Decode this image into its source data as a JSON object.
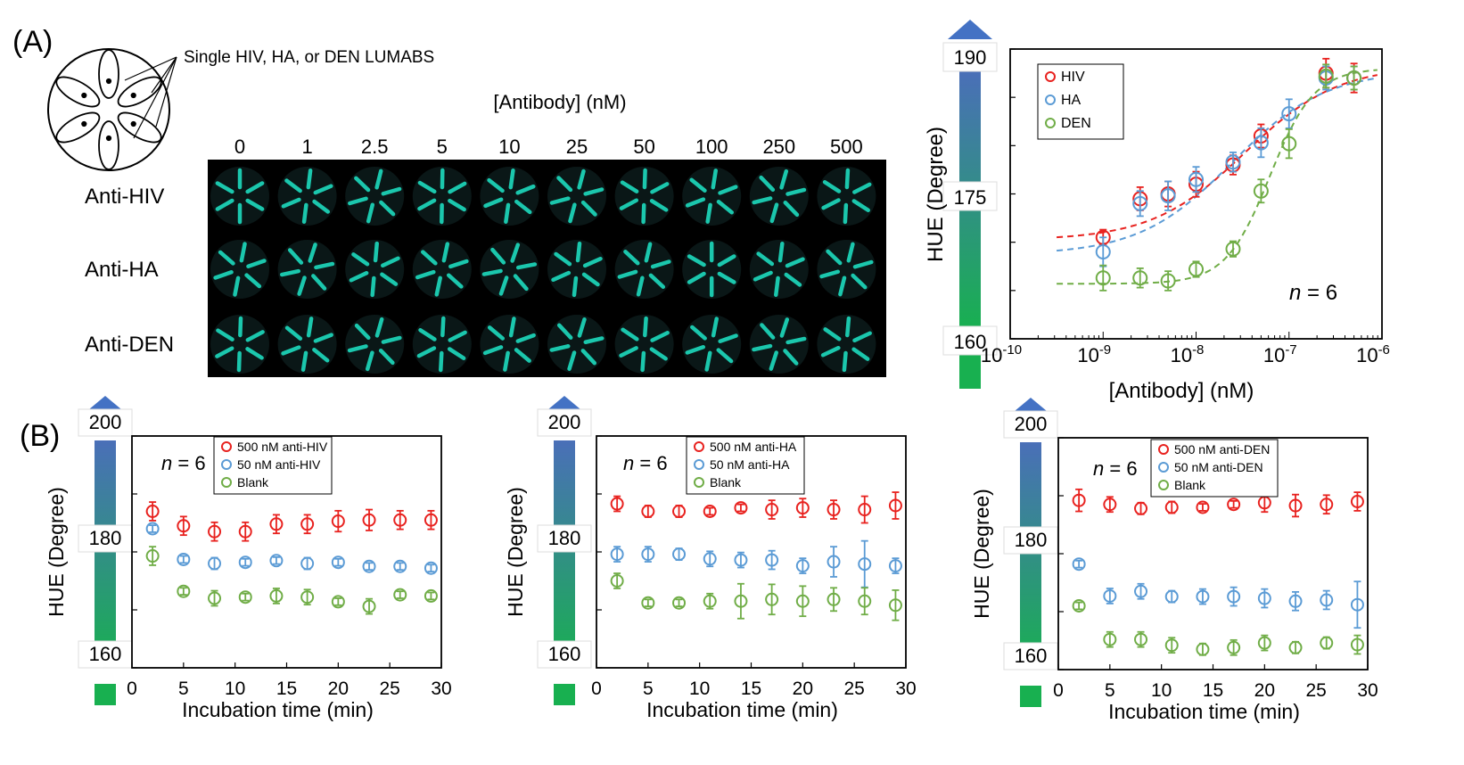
{
  "panel_labels": {
    "a": "(A)",
    "b": "(B)"
  },
  "schematic": {
    "label": "Single HIV, HA, or DEN LUMABS"
  },
  "grid": {
    "title": "[Antibody] (nM)",
    "columns": [
      "0",
      "1",
      "2.5",
      "5",
      "10",
      "25",
      "50",
      "100",
      "250",
      "500"
    ],
    "rows": [
      "Anti-HIV",
      "Anti-HA",
      "Anti-DEN"
    ]
  },
  "colors": {
    "hiv": "#e8221f",
    "ha": "#5b9bd5",
    "den": "#70ad47",
    "arrow": "#4472c4",
    "bar_top": "#4a6fb8",
    "bar_bottom": "#18b050",
    "spot": "#1ee6c8"
  },
  "scale_bar_a": {
    "arrow": "up-arrow",
    "labels": [
      "190",
      "175",
      "160"
    ]
  },
  "scale_bars_b": {
    "arrow": "up-arrow",
    "labels": [
      "200",
      "180",
      "160"
    ]
  },
  "chart_data": [
    {
      "id": "A-dose",
      "type": "scatter",
      "xscale": "log",
      "xlabel": "[Antibody] (nM)",
      "ylabel": "HUE (Degree)",
      "xlim": [
        1e-10,
        1e-06
      ],
      "ylim": [
        160,
        190
      ],
      "yticks": [
        160,
        175,
        190
      ],
      "xtick_labels": [
        "10-10",
        "10-9",
        "10-8",
        "10-7",
        "10-6"
      ],
      "annotation": "n = 6",
      "legend": "top-left",
      "fit": "dashed sigmoid",
      "series": [
        {
          "name": "HIV",
          "color_key": "hiv",
          "x": [
            1e-09,
            2.5e-09,
            5e-09,
            1e-08,
            2.5e-08,
            5e-08,
            2.5e-07,
            5e-07
          ],
          "y": [
            170.5,
            174.5,
            175,
            176,
            178,
            181,
            187.5,
            187
          ],
          "err": [
            0.8,
            1.2,
            1.3,
            1.3,
            1,
            1.2,
            1.5,
            1.5
          ]
        },
        {
          "name": "HA",
          "color_key": "ha",
          "x": [
            1e-09,
            2.5e-09,
            5e-09,
            1e-08,
            2.5e-08,
            5e-08,
            1e-07,
            2.5e-07,
            5e-07
          ],
          "y": [
            169,
            174,
            174.8,
            176.5,
            178.3,
            180.3,
            183.3,
            187,
            187
          ],
          "err": [
            1.5,
            1.3,
            1.5,
            1.3,
            1,
            1.5,
            1.5,
            1.2,
            1.2
          ]
        },
        {
          "name": "DEN",
          "color_key": "den",
          "x": [
            1e-09,
            2.5e-09,
            5e-09,
            1e-08,
            2.5e-08,
            5e-08,
            1e-07,
            2.5e-07,
            5e-07
          ],
          "y": [
            166.3,
            166.3,
            166,
            167.2,
            169.3,
            175.3,
            180.2,
            187.2,
            187
          ],
          "err": [
            1.3,
            1,
            1,
            0.8,
            0.8,
            1.2,
            1.5,
            1.2,
            1.2
          ]
        }
      ]
    },
    {
      "id": "B-HIV",
      "type": "scatter",
      "xlabel": "Incubation time (min)",
      "ylabel": "HUE (Degree)",
      "xlim": [
        0,
        30
      ],
      "ylim": [
        160,
        200
      ],
      "xticks": [
        0,
        5,
        10,
        15,
        20,
        25,
        30
      ],
      "yticks": [
        160,
        180,
        200
      ],
      "annotation": "n = 6",
      "legend": "top",
      "series": [
        {
          "name": "500 nM anti-HIV",
          "color_key": "hiv",
          "x": [
            2,
            5,
            8,
            11,
            14,
            17,
            20,
            23,
            26,
            29
          ],
          "y": [
            187,
            184.5,
            183.5,
            183.5,
            184.8,
            184.8,
            185.3,
            185.5,
            185.5,
            185.5
          ],
          "err": [
            1.6,
            1.6,
            1.6,
            1.6,
            1.6,
            1.6,
            1.8,
            1.8,
            1.6,
            1.6
          ]
        },
        {
          "name": "50 nM anti-HIV",
          "color_key": "ha",
          "x": [
            2,
            5,
            8,
            11,
            14,
            17,
            20,
            23,
            26,
            29
          ],
          "y": [
            184,
            178.7,
            178,
            178.2,
            178.5,
            178,
            178.2,
            177.5,
            177.5,
            177.2
          ],
          "err": [
            0.6,
            0.6,
            1,
            0.6,
            0.6,
            1,
            0.6,
            0.6,
            0.6,
            0.6
          ]
        },
        {
          "name": "Blank",
          "color_key": "den",
          "x": [
            2,
            5,
            8,
            11,
            14,
            17,
            20,
            23,
            26,
            29
          ],
          "y": [
            179.3,
            173.2,
            172,
            172.2,
            172.4,
            172.2,
            171.4,
            170.6,
            172.6,
            172.4
          ],
          "err": [
            1.6,
            0.6,
            1.3,
            0.6,
            1.3,
            1.3,
            0.6,
            1.3,
            0.6,
            0.6
          ]
        }
      ]
    },
    {
      "id": "B-HA",
      "type": "scatter",
      "xlabel": "Incubation time (min)",
      "ylabel": "HUE (Degree)",
      "xlim": [
        0,
        30
      ],
      "ylim": [
        160,
        200
      ],
      "xticks": [
        0,
        5,
        10,
        15,
        20,
        25,
        30
      ],
      "yticks": [
        160,
        180,
        200
      ],
      "annotation": "n = 6",
      "legend": "top",
      "series": [
        {
          "name": "500 nM anti-HA",
          "color_key": "hiv",
          "x": [
            2,
            5,
            8,
            11,
            14,
            17,
            20,
            23,
            26,
            29
          ],
          "y": [
            188.3,
            187,
            187,
            187,
            187.6,
            187.3,
            187.6,
            187.3,
            187.3,
            188
          ],
          "err": [
            1.3,
            1,
            1,
            0.6,
            0.6,
            1.6,
            1.6,
            1.6,
            2.3,
            2.3
          ]
        },
        {
          "name": "50 nM anti-HA",
          "color_key": "ha",
          "x": [
            2,
            5,
            8,
            11,
            14,
            17,
            20,
            23,
            26,
            29
          ],
          "y": [
            179.6,
            179.6,
            179.6,
            178.8,
            178.6,
            178.6,
            177.6,
            178.3,
            177.9,
            177.6
          ],
          "err": [
            1.3,
            1.3,
            1,
            1.3,
            1.3,
            1.6,
            1.3,
            2.6,
            4,
            1.3
          ]
        },
        {
          "name": "Blank",
          "color_key": "den",
          "x": [
            2,
            5,
            8,
            11,
            14,
            17,
            20,
            23,
            26,
            29
          ],
          "y": [
            175,
            171.2,
            171.2,
            171.5,
            171.5,
            171.8,
            171.5,
            171.8,
            171.5,
            170.8
          ],
          "err": [
            1.3,
            0.6,
            0.6,
            1.3,
            3,
            2.6,
            2.6,
            2,
            2.3,
            2.6
          ]
        }
      ]
    },
    {
      "id": "B-DEN",
      "type": "scatter",
      "xlabel": "Incubation time (min)",
      "ylabel": "HUE (Degree)",
      "xlim": [
        0,
        30
      ],
      "ylim": [
        160,
        200
      ],
      "xticks": [
        0,
        5,
        10,
        15,
        20,
        25,
        30
      ],
      "yticks": [
        160,
        180,
        200
      ],
      "annotation": "n = 6",
      "legend": "top-left",
      "series": [
        {
          "name": "500 nM anti-DEN",
          "color_key": "hiv",
          "x": [
            2,
            5,
            8,
            11,
            14,
            17,
            20,
            23,
            26,
            29
          ],
          "y": [
            189.2,
            188.5,
            187.8,
            188,
            188,
            188.5,
            188.8,
            188.3,
            188.5,
            189
          ],
          "err": [
            1.9,
            1.3,
            1,
            1,
            0.6,
            0.6,
            1.6,
            1.9,
            1.6,
            1.6
          ]
        },
        {
          "name": "50 nM anti-DEN",
          "color_key": "ha",
          "x": [
            2,
            5,
            8,
            11,
            14,
            17,
            20,
            23,
            26,
            29
          ],
          "y": [
            178.2,
            172.7,
            173.5,
            172.6,
            172.6,
            172.6,
            172.3,
            171.8,
            172,
            171.2
          ],
          "err": [
            0.6,
            1.3,
            1.3,
            1,
            1.3,
            1.6,
            1.6,
            1.6,
            1.6,
            4
          ]
        },
        {
          "name": "Blank",
          "color_key": "den",
          "x": [
            2,
            5,
            8,
            11,
            14,
            17,
            20,
            23,
            26,
            29
          ],
          "y": [
            171,
            165.2,
            165.2,
            164.2,
            163.5,
            163.8,
            164.6,
            163.8,
            164.6,
            164.3
          ],
          "err": [
            0.6,
            1.3,
            1.3,
            1.3,
            1,
            1.3,
            1.3,
            1,
            1,
            1.6
          ]
        }
      ]
    }
  ]
}
